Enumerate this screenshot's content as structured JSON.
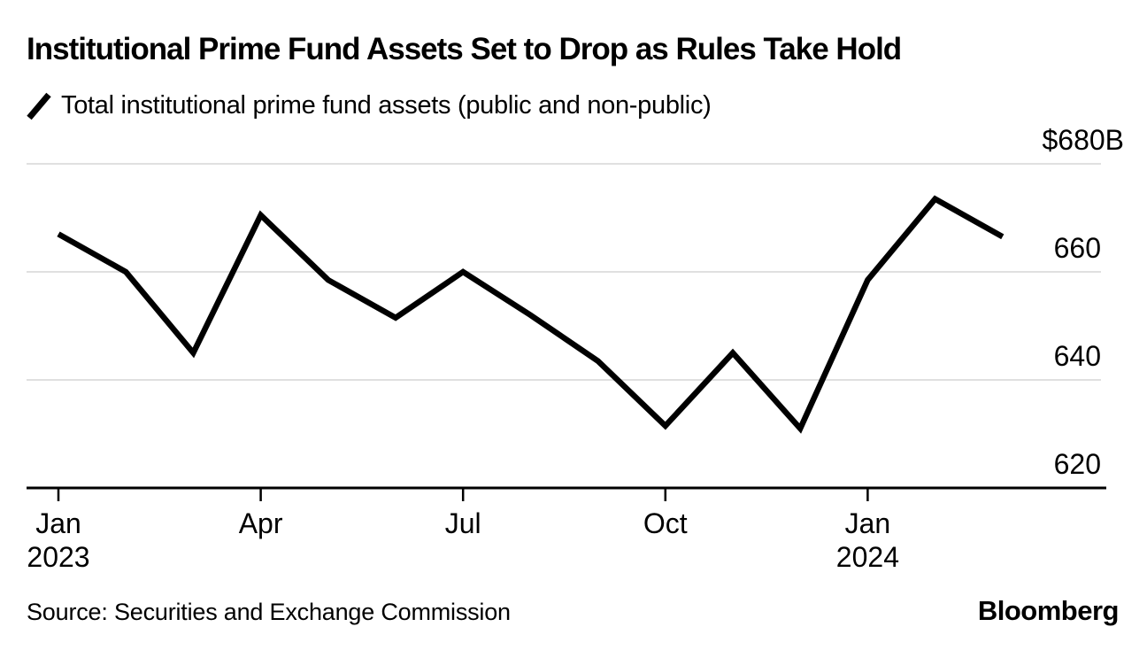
{
  "header": {
    "title": "Institutional Prime Fund Assets Set to Drop as Rules Take Hold",
    "legend_label": "Total institutional prime fund assets (public and non-public)"
  },
  "chart_data": {
    "type": "line",
    "title": "Institutional Prime Fund Assets Set to Drop as Rules Take Hold",
    "series": [
      {
        "name": "Total institutional prime fund assets (public and non-public)",
        "values": [
          667,
          660,
          645,
          670.5,
          658.5,
          651.5,
          660,
          652,
          643.5,
          631.5,
          645,
          631,
          658.5,
          673.5,
          666.5
        ]
      }
    ],
    "x": [
      "Jan 2023",
      "Feb 2023",
      "Mar 2023",
      "Apr 2023",
      "May 2023",
      "Jun 2023",
      "Jul 2023",
      "Aug 2023",
      "Sep 2023",
      "Oct 2023",
      "Nov 2023",
      "Dec 2023",
      "Jan 2024",
      "Feb 2024",
      "Mar 2024"
    ],
    "unit": "$B",
    "ylim": [
      620,
      683
    ],
    "grid": true,
    "legend_position": "top-left",
    "y_ticks": [
      {
        "value": 680,
        "label": "$680B"
      },
      {
        "value": 660,
        "label": "660"
      },
      {
        "value": 640,
        "label": "640"
      },
      {
        "value": 620,
        "label": "620"
      }
    ],
    "x_ticks": [
      {
        "month_index": 0,
        "label": "Jan",
        "sublabel": "2023"
      },
      {
        "month_index": 3,
        "label": "Apr",
        "sublabel": ""
      },
      {
        "month_index": 6,
        "label": "Jul",
        "sublabel": ""
      },
      {
        "month_index": 9,
        "label": "Oct",
        "sublabel": ""
      },
      {
        "month_index": 12,
        "label": "Jan",
        "sublabel": "2024"
      }
    ],
    "line_color": "#000000",
    "grid_color": "#e0e0e0",
    "axis_color": "#000000"
  },
  "footer": {
    "source": "Source: Securities and Exchange Commission",
    "brand": "Bloomberg"
  }
}
